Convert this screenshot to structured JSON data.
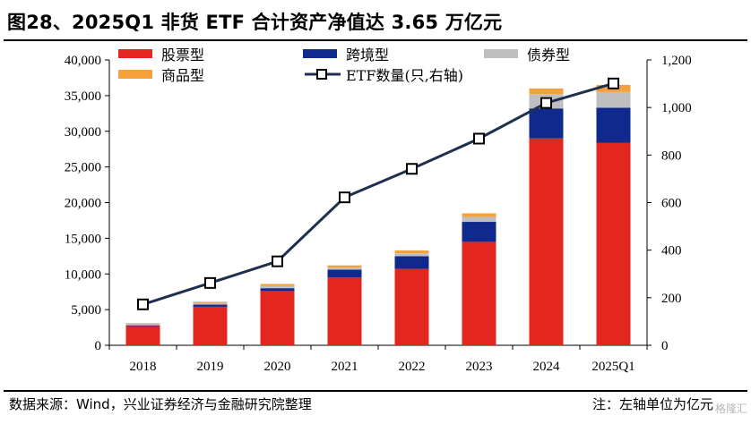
{
  "header": {
    "title": "图28、2025Q1 非货 ETF 合计资产净值达 3.65 万亿元"
  },
  "footer": {
    "source": "数据来源：Wind，兴业证券经济与金融研究院整理",
    "note": "注：左轴单位为亿元",
    "watermark": "格隆汇"
  },
  "colors": {
    "stock": "#E3261F",
    "cross_border": "#0F2A8C",
    "bond": "#BFBFBF",
    "commodity": "#F7A13B",
    "line": "#1F2F4E"
  },
  "chart_data": {
    "type": "bar",
    "stacked": true,
    "categories": [
      "2018",
      "2019",
      "2020",
      "2021",
      "2022",
      "2023",
      "2024",
      "2025Q1"
    ],
    "series": [
      {
        "name": "股票型",
        "axis": "left",
        "values": [
          2700,
          5400,
          7600,
          9500,
          10700,
          14500,
          29000,
          28400
        ]
      },
      {
        "name": "跨境型",
        "axis": "left",
        "values": [
          100,
          300,
          400,
          1100,
          1800,
          2800,
          4200,
          4900
        ]
      },
      {
        "name": "债券型",
        "axis": "left",
        "values": [
          200,
          250,
          300,
          300,
          400,
          700,
          2000,
          2200
        ]
      },
      {
        "name": "商品型",
        "axis": "left",
        "values": [
          100,
          150,
          300,
          300,
          400,
          500,
          800,
          1000
        ]
      }
    ],
    "line_series": {
      "name": "ETF数量(只,右轴)",
      "axis": "right",
      "values": [
        172,
        262,
        353,
        622,
        742,
        869,
        1019,
        1101
      ]
    },
    "yleft": {
      "ylim": [
        0,
        40000
      ],
      "ticks": [
        "0",
        "5,000",
        "10,000",
        "15,000",
        "20,000",
        "25,000",
        "30,000",
        "35,000",
        "40,000"
      ]
    },
    "yright": {
      "ylim": [
        0,
        1200
      ],
      "ticks": [
        "0",
        "200",
        "400",
        "600",
        "800",
        "1,000",
        "1,200"
      ]
    },
    "legend": [
      {
        "label": "股票型",
        "kind": "bar",
        "series": "stock"
      },
      {
        "label": "跨境型",
        "kind": "bar",
        "series": "cross_border"
      },
      {
        "label": "债券型",
        "kind": "bar",
        "series": "bond"
      },
      {
        "label": "商品型",
        "kind": "bar",
        "series": "commodity"
      },
      {
        "label": "ETF数量(只,右轴)",
        "kind": "line",
        "series": "line"
      }
    ],
    "legend_position": "top-left"
  }
}
